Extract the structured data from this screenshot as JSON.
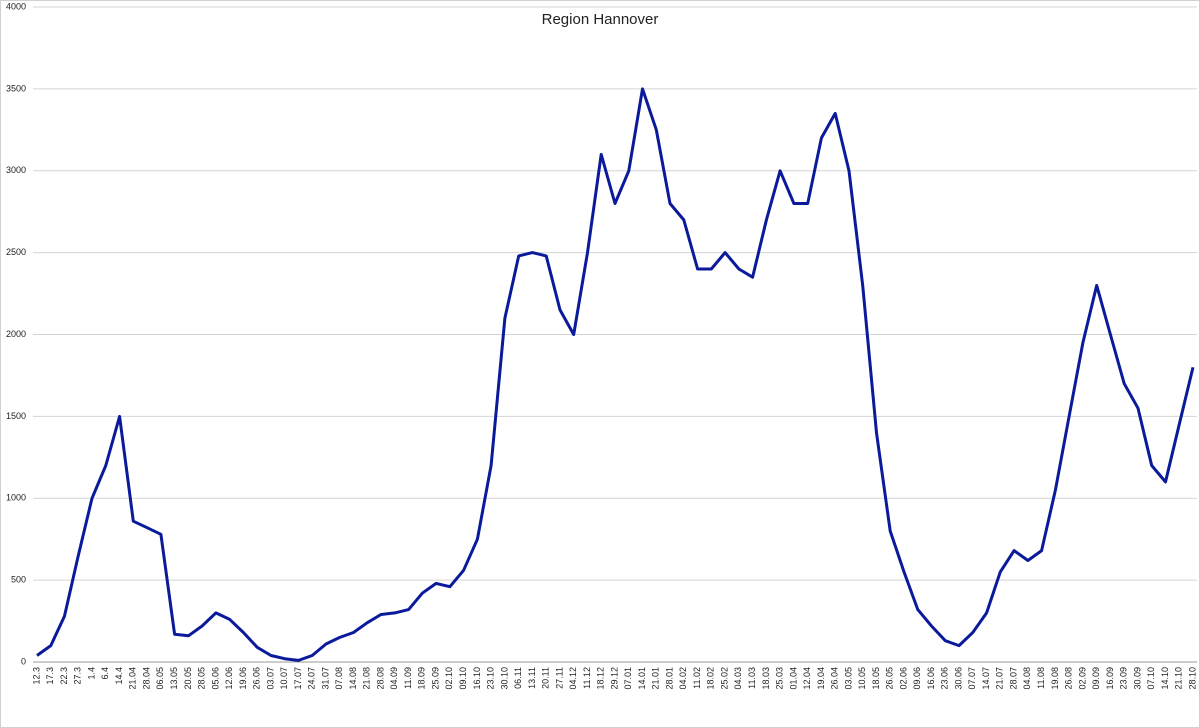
{
  "chart_data": {
    "type": "line",
    "title": "Region Hannover",
    "categories": [
      "12.3",
      "17.3",
      "22.3",
      "27.3",
      "1.4",
      "6.4",
      "14.4",
      "21.04",
      "28.04",
      "06.05",
      "13.05",
      "20.05",
      "28.05",
      "05.06",
      "12.06",
      "19.06",
      "26.06",
      "03.07",
      "10.07",
      "17.07",
      "24.07",
      "31.07",
      "07.08",
      "14.08",
      "21.08",
      "28.08",
      "04.09",
      "11.09",
      "18.09",
      "25.09",
      "02.10",
      "09.10",
      "16.10",
      "23.10",
      "30.10",
      "06.11",
      "13.11",
      "20.11",
      "27.11",
      "04.12",
      "11.12",
      "18.12",
      "29.12",
      "07.01",
      "14.01",
      "21.01",
      "28.01",
      "04.02",
      "11.02",
      "18.02",
      "25.02",
      "04.03",
      "11.03",
      "18.03",
      "25.03",
      "01.04",
      "12.04",
      "19.04",
      "26.04",
      "03.05",
      "10.05",
      "18.05",
      "26.05",
      "02.06",
      "09.06",
      "16.06",
      "23.06",
      "30.06",
      "07.07",
      "14.07",
      "21.07",
      "28.07",
      "04.08",
      "11.08",
      "19.08",
      "26.08",
      "02.09",
      "09.09",
      "16.09",
      "23.09",
      "30.09",
      "07.10",
      "14.10",
      "21.10",
      "28.10"
    ],
    "series": [
      {
        "name": "Region Hannover",
        "color": "#0a1a9a",
        "values": [
          40,
          100,
          280,
          650,
          1000,
          1200,
          1500,
          860,
          820,
          780,
          170,
          160,
          220,
          300,
          260,
          180,
          90,
          40,
          20,
          10,
          40,
          110,
          150,
          180,
          240,
          290,
          300,
          320,
          420,
          480,
          460,
          560,
          750,
          1200,
          2100,
          2480,
          2500,
          2480,
          2150,
          2000,
          2500,
          3100,
          2800,
          3000,
          3500,
          3250,
          2800,
          2700,
          2400,
          2400,
          2500,
          2400,
          2350,
          2700,
          3000,
          2800,
          2800,
          3200,
          3350,
          3000,
          2300,
          1400,
          800,
          550,
          320,
          220,
          130,
          100,
          180,
          300,
          550,
          680,
          620,
          680,
          1050,
          1500,
          1950,
          2300,
          2000,
          1700,
          1550,
          1200,
          1100,
          1450,
          1800
        ]
      }
    ],
    "ylim": [
      0,
      4000
    ],
    "yticks": [
      0,
      500,
      1000,
      1500,
      2000,
      2500,
      3000,
      3500,
      4000
    ],
    "grid": true
  }
}
